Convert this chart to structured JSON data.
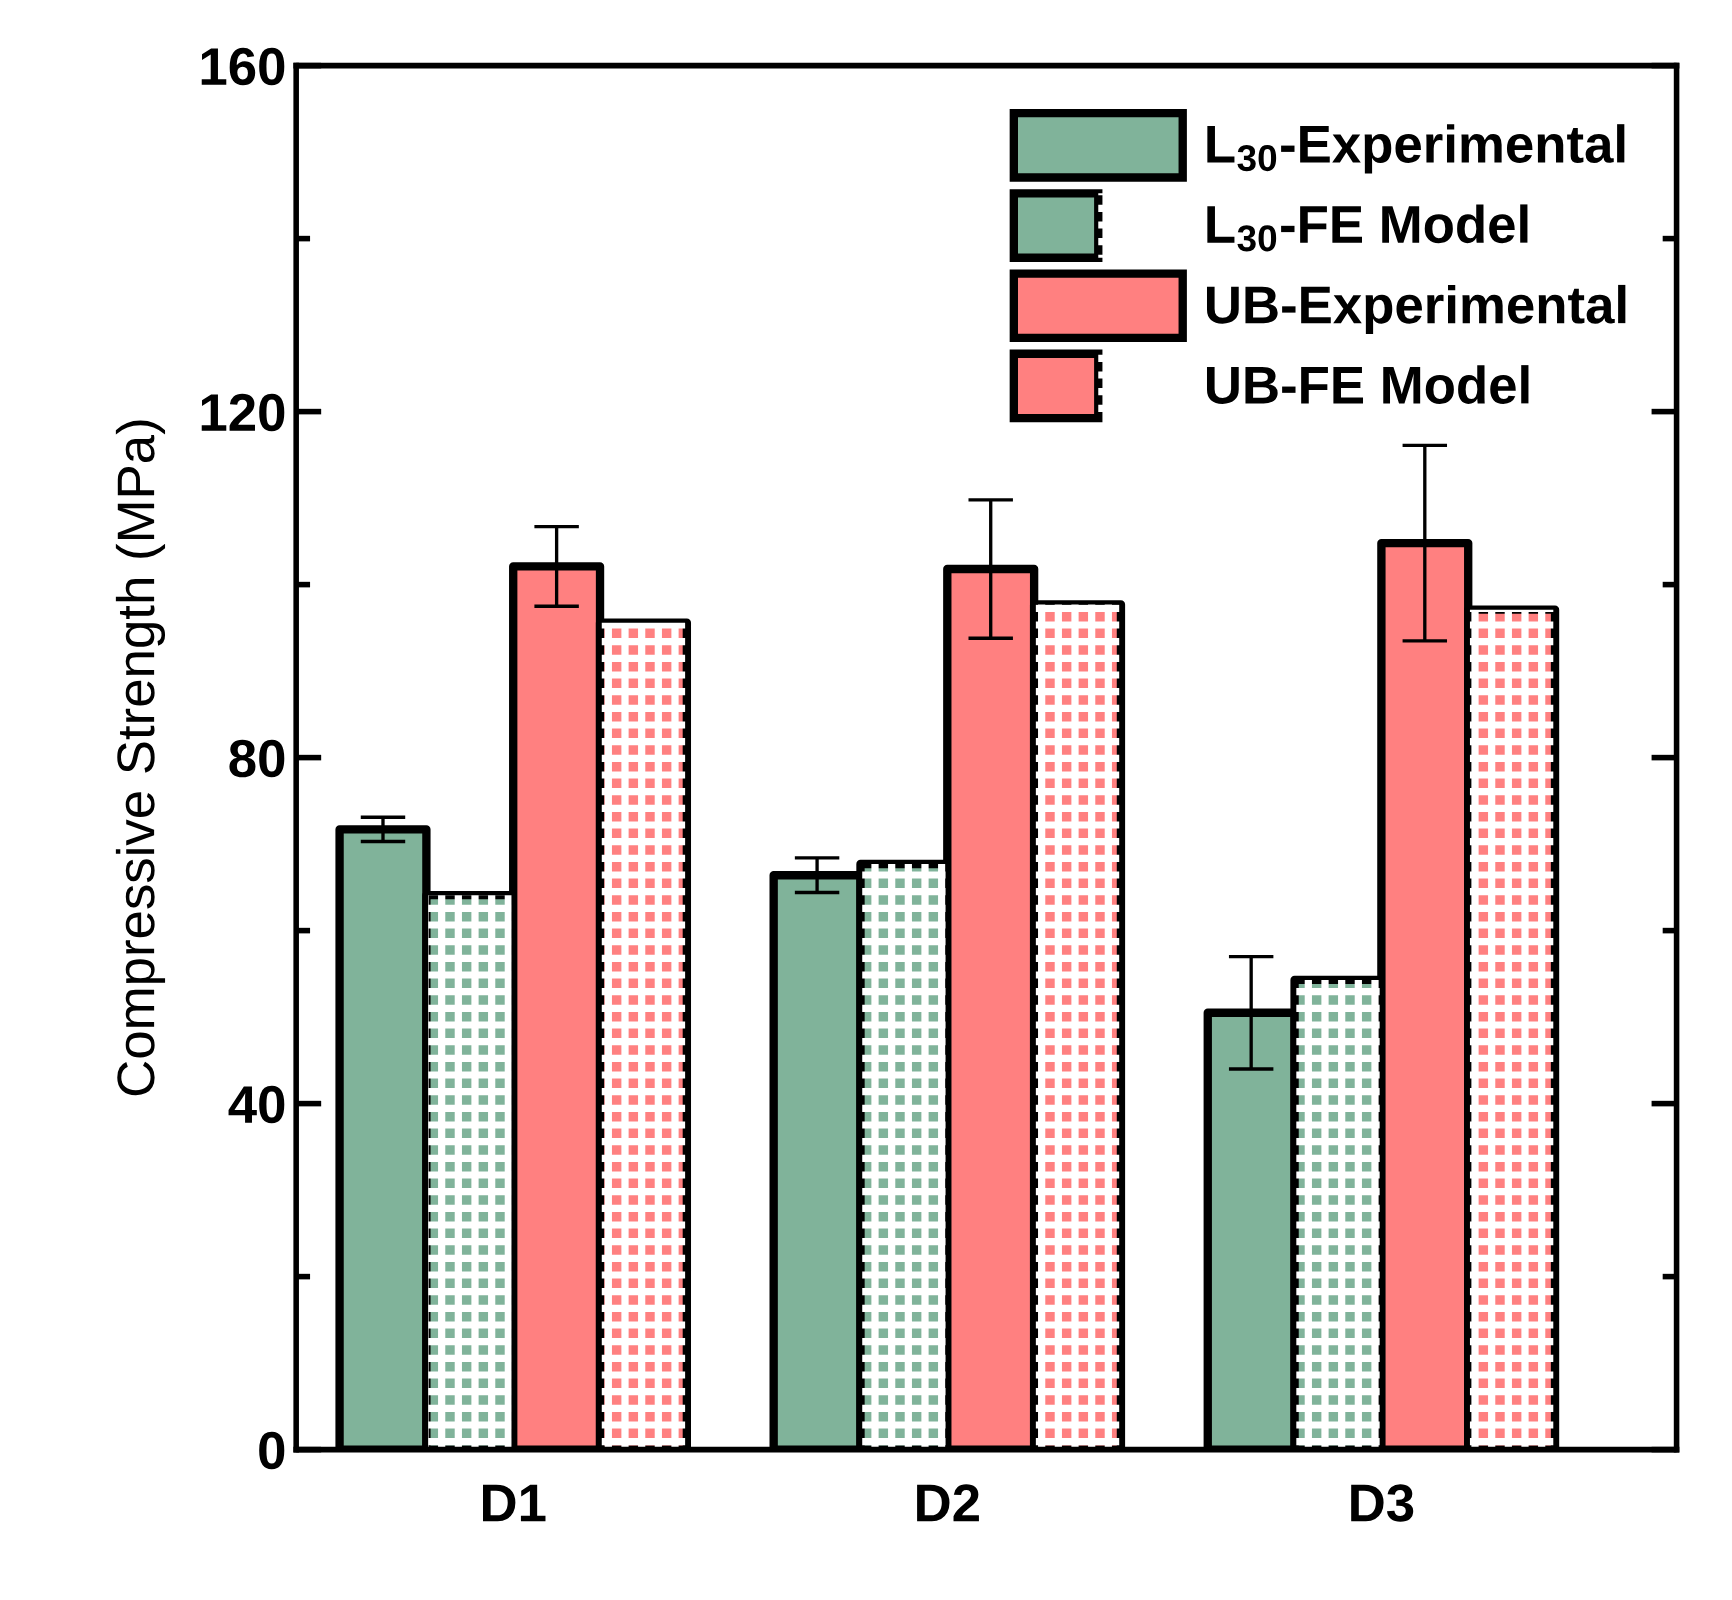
{
  "chart_data": {
    "type": "bar",
    "ylabel": "Compressive Strength (MPa)",
    "categories": [
      "D1",
      "D2",
      "D3"
    ],
    "series": [
      {
        "name": "L$_{30}$-Experimental",
        "color": "#80b39a",
        "values": [
          71.7,
          66.4,
          50.5
        ],
        "errors": [
          1.4,
          2.0,
          6.5
        ]
      },
      {
        "name": "L$_{30}$-FE Model",
        "color": "#80b39a",
        "values": [
          64.1,
          67.7,
          54.3
        ]
      },
      {
        "name": "UB-Experimental",
        "color": "#ff8080",
        "values": [
          102.1,
          101.8,
          104.8
        ],
        "errors": [
          4.6,
          8.0,
          11.3
        ]
      },
      {
        "name": "UB-FE Model",
        "color": "#ff8080",
        "values": [
          95.6,
          97.7,
          97.1
        ]
      }
    ],
    "ylim": [
      0,
      160
    ],
    "yticks": [
      0,
      40,
      80,
      120,
      160
    ],
    "grid": false,
    "legend": "top right"
  }
}
